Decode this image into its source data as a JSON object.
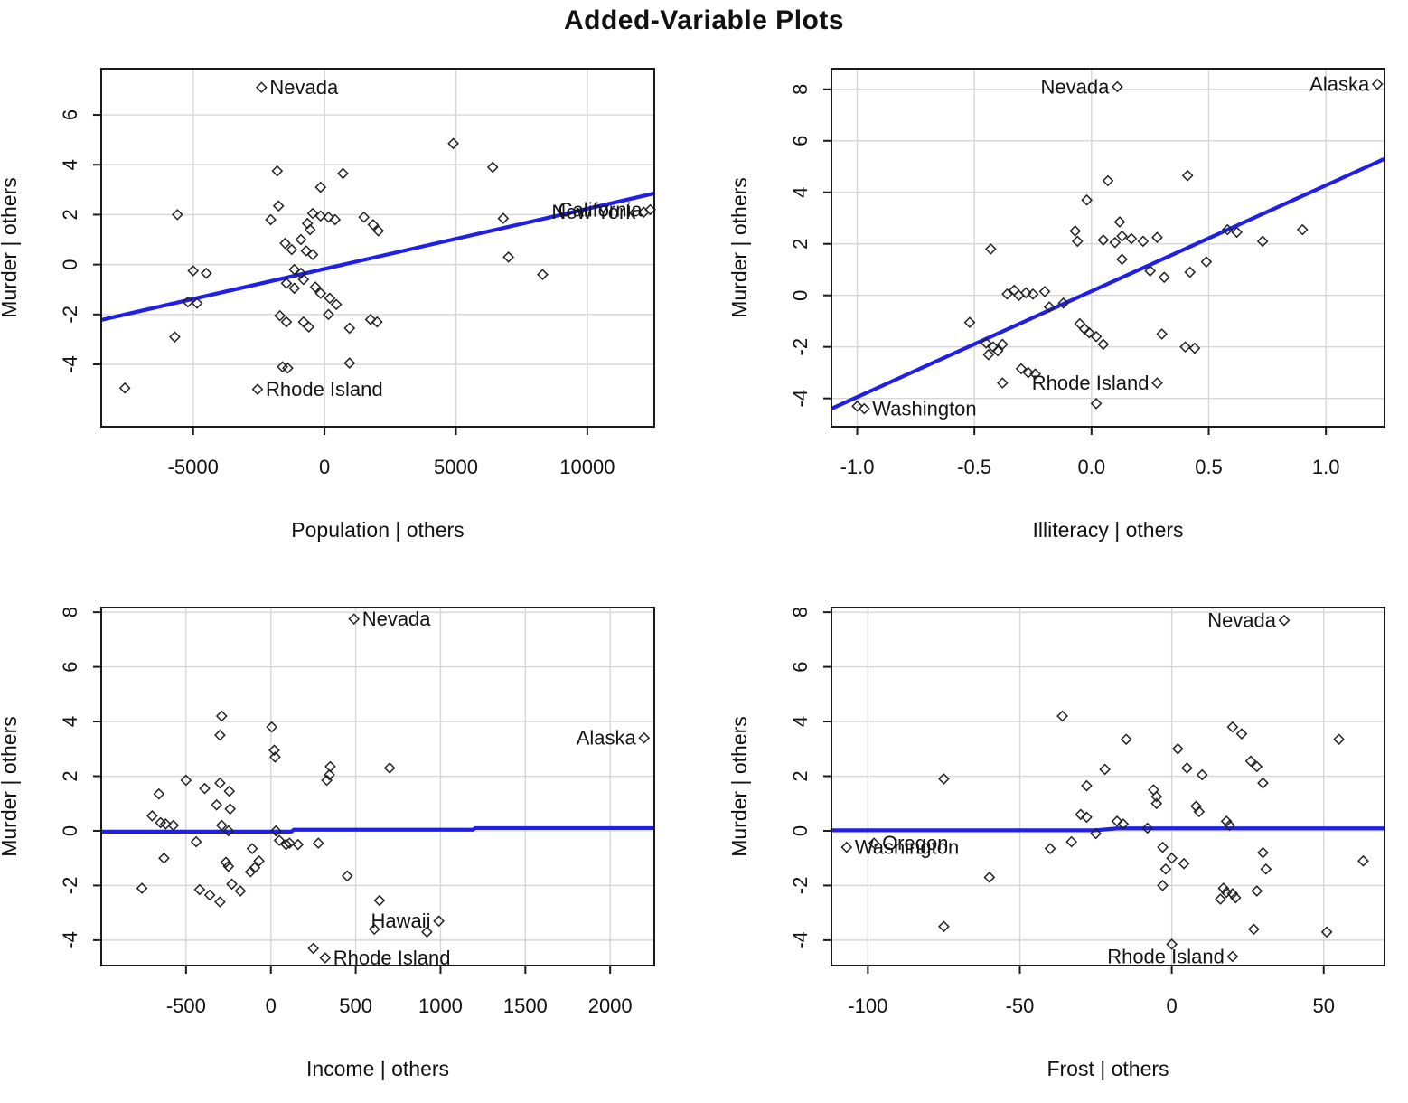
{
  "title": "Added-Variable Plots",
  "colors": {
    "regression_line": "#1f1fe8",
    "grid": "#d6d6d6",
    "box": "#1a1a1a",
    "point_stroke": "#222222",
    "tick_text": "#111111",
    "label_text": "#141414"
  },
  "chart_data": [
    {
      "type": "scatter",
      "xlabel": "Population | others",
      "ylabel": "Murder  |  others",
      "xlim": [
        -8500,
        12550
      ],
      "ylim": [
        -6.5,
        7.85
      ],
      "xticks": [
        -5000,
        0,
        5000,
        10000
      ],
      "xtick_labels": [
        "-5000",
        "0",
        "5000",
        "10000"
      ],
      "yticks": [
        -4,
        -2,
        0,
        2,
        4,
        6
      ],
      "ytick_labels": [
        "-4",
        "-2",
        "0",
        "2",
        "4",
        "6"
      ],
      "regression_line": [
        [
          -8500,
          -2.22
        ],
        [
          12550,
          2.85
        ]
      ],
      "points": [
        [
          -7600,
          -4.95
        ],
        [
          -2400,
          7.1
        ],
        [
          4900,
          4.85
        ],
        [
          6400,
          3.9
        ],
        [
          -1800,
          3.75
        ],
        [
          700,
          3.65
        ],
        [
          -150,
          3.1
        ],
        [
          -1750,
          2.35
        ],
        [
          -5600,
          2.0
        ],
        [
          -2050,
          1.8
        ],
        [
          -450,
          2.05
        ],
        [
          -150,
          1.95
        ],
        [
          150,
          1.9
        ],
        [
          400,
          1.8
        ],
        [
          1500,
          1.9
        ],
        [
          1850,
          1.6
        ],
        [
          2050,
          1.35
        ],
        [
          -650,
          1.65
        ],
        [
          -550,
          1.4
        ],
        [
          -900,
          1.0
        ],
        [
          -1500,
          0.85
        ],
        [
          -700,
          0.55
        ],
        [
          -1250,
          0.6
        ],
        [
          -450,
          0.4
        ],
        [
          6800,
          1.85
        ],
        [
          12150,
          2.1
        ],
        [
          12400,
          2.2
        ],
        [
          7000,
          0.3
        ],
        [
          8300,
          -0.4
        ],
        [
          -5000,
          -0.25
        ],
        [
          -4500,
          -0.35
        ],
        [
          -1150,
          -0.2
        ],
        [
          -900,
          -0.35
        ],
        [
          -800,
          -0.6
        ],
        [
          -1450,
          -0.75
        ],
        [
          -1150,
          -0.95
        ],
        [
          -350,
          -0.9
        ],
        [
          -150,
          -1.15
        ],
        [
          200,
          -1.35
        ],
        [
          450,
          -1.6
        ],
        [
          -5200,
          -1.5
        ],
        [
          -4850,
          -1.55
        ],
        [
          -1700,
          -2.05
        ],
        [
          -1450,
          -2.3
        ],
        [
          -800,
          -2.3
        ],
        [
          -600,
          -2.5
        ],
        [
          150,
          -2.0
        ],
        [
          1750,
          -2.2
        ],
        [
          2000,
          -2.3
        ],
        [
          950,
          -2.55
        ],
        [
          -5700,
          -2.9
        ],
        [
          -1600,
          -4.1
        ],
        [
          -1400,
          -4.15
        ],
        [
          950,
          -3.95
        ],
        [
          -2550,
          -5.0
        ]
      ],
      "point_labels": [
        {
          "text": "Nevada",
          "x": -2400,
          "y": 7.1,
          "side": "right"
        },
        {
          "text": "Rhode Island",
          "x": -2550,
          "y": -5.0,
          "side": "right"
        },
        {
          "text": "New York",
          "x": 12150,
          "y": 2.1,
          "side": "left"
        },
        {
          "text": "California",
          "x": 12400,
          "y": 2.2,
          "side": "left"
        }
      ]
    },
    {
      "type": "scatter",
      "xlabel": "Illiteracy | others",
      "ylabel": "Murder  |  others",
      "xlim": [
        -1.11,
        1.25
      ],
      "ylim": [
        -5.1,
        8.8
      ],
      "xticks": [
        -1.0,
        -0.5,
        0.0,
        0.5,
        1.0
      ],
      "xtick_labels": [
        "-1.0",
        "-0.5",
        "0.0",
        "0.5",
        "1.0"
      ],
      "yticks": [
        -4,
        -2,
        0,
        2,
        4,
        6,
        8
      ],
      "ytick_labels": [
        "-4",
        "-2",
        "0",
        "2",
        "4",
        "6",
        "8"
      ],
      "regression_line": [
        [
          -1.11,
          -4.4
        ],
        [
          1.25,
          5.3
        ]
      ],
      "points": [
        [
          0.11,
          8.1
        ],
        [
          1.22,
          8.2
        ],
        [
          0.41,
          4.65
        ],
        [
          0.07,
          4.45
        ],
        [
          -0.02,
          3.7
        ],
        [
          0.12,
          2.85
        ],
        [
          -0.07,
          2.5
        ],
        [
          -0.06,
          2.1
        ],
        [
          0.13,
          2.3
        ],
        [
          0.17,
          2.2
        ],
        [
          0.1,
          2.05
        ],
        [
          0.05,
          2.15
        ],
        [
          0.22,
          2.1
        ],
        [
          0.28,
          2.25
        ],
        [
          0.58,
          2.55
        ],
        [
          0.62,
          2.45
        ],
        [
          0.73,
          2.1
        ],
        [
          0.9,
          2.55
        ],
        [
          -0.43,
          1.8
        ],
        [
          0.13,
          1.4
        ],
        [
          0.25,
          0.95
        ],
        [
          0.31,
          0.7
        ],
        [
          0.42,
          0.9
        ],
        [
          0.49,
          1.3
        ],
        [
          -0.52,
          -1.05
        ],
        [
          -0.45,
          -1.85
        ],
        [
          -0.42,
          -2.0
        ],
        [
          -0.38,
          -1.9
        ],
        [
          -0.4,
          -2.15
        ],
        [
          -0.44,
          -2.3
        ],
        [
          -0.33,
          0.2
        ],
        [
          -0.28,
          0.1
        ],
        [
          -0.25,
          0.05
        ],
        [
          -0.2,
          0.15
        ],
        [
          -0.31,
          0.0
        ],
        [
          -0.36,
          0.05
        ],
        [
          -0.18,
          -0.45
        ],
        [
          -0.12,
          -0.3
        ],
        [
          -0.05,
          -1.1
        ],
        [
          -0.03,
          -1.3
        ],
        [
          -0.01,
          -1.45
        ],
        [
          0.02,
          -1.6
        ],
        [
          0.05,
          -1.9
        ],
        [
          0.3,
          -1.5
        ],
        [
          0.4,
          -2.0
        ],
        [
          0.44,
          -2.05
        ],
        [
          -0.3,
          -2.85
        ],
        [
          -0.27,
          -3.0
        ],
        [
          -0.24,
          -3.05
        ],
        [
          -0.38,
          -3.4
        ],
        [
          0.28,
          -3.4
        ],
        [
          0.02,
          -4.2
        ],
        [
          -0.97,
          -4.4
        ],
        [
          -1.0,
          -4.3
        ]
      ],
      "point_labels": [
        {
          "text": "Nevada",
          "x": 0.11,
          "y": 8.1,
          "side": "left"
        },
        {
          "text": "Alaska",
          "x": 1.22,
          "y": 8.2,
          "side": "left"
        },
        {
          "text": "Rhode Island",
          "x": 0.28,
          "y": -3.4,
          "side": "left"
        },
        {
          "text": "Washington",
          "x": -0.97,
          "y": -4.4,
          "side": "right"
        }
      ]
    },
    {
      "type": "scatter",
      "xlabel": "Income | others",
      "ylabel": "Murder  |  others",
      "xlim": [
        -1000,
        2260
      ],
      "ylim": [
        -4.93,
        8.17
      ],
      "xticks": [
        -500,
        0,
        500,
        1000,
        1500,
        2000
      ],
      "xtick_labels": [
        "-500",
        "0",
        "500",
        "1000",
        "1500",
        "2000"
      ],
      "yticks": [
        -4,
        -2,
        0,
        2,
        4,
        6,
        8
      ],
      "ytick_labels": [
        "-4",
        "-2",
        "0",
        "2",
        "4",
        "6",
        "8"
      ],
      "regression_line": [
        [
          -1000,
          -0.03
        ],
        [
          120,
          -0.03
        ],
        [
          135,
          0.04
        ],
        [
          1190,
          0.04
        ],
        [
          1205,
          0.1
        ],
        [
          2260,
          0.1
        ]
      ],
      "points": [
        [
          490,
          7.75
        ],
        [
          2200,
          3.4
        ],
        [
          -290,
          4.2
        ],
        [
          -300,
          3.5
        ],
        [
          5,
          3.8
        ],
        [
          20,
          2.95
        ],
        [
          25,
          2.7
        ],
        [
          350,
          2.35
        ],
        [
          345,
          2.05
        ],
        [
          330,
          1.85
        ],
        [
          700,
          2.3
        ],
        [
          -500,
          1.85
        ],
        [
          -300,
          1.75
        ],
        [
          -390,
          1.55
        ],
        [
          -660,
          1.35
        ],
        [
          -245,
          1.45
        ],
        [
          -320,
          0.95
        ],
        [
          -240,
          0.8
        ],
        [
          -700,
          0.55
        ],
        [
          -650,
          0.3
        ],
        [
          -620,
          0.25
        ],
        [
          -575,
          0.2
        ],
        [
          -290,
          0.2
        ],
        [
          -250,
          0.0
        ],
        [
          30,
          0.0
        ],
        [
          50,
          -0.35
        ],
        [
          90,
          -0.5
        ],
        [
          110,
          -0.45
        ],
        [
          160,
          -0.5
        ],
        [
          280,
          -0.45
        ],
        [
          -110,
          -0.65
        ],
        [
          -440,
          -0.4
        ],
        [
          -630,
          -1.0
        ],
        [
          -265,
          -1.15
        ],
        [
          -250,
          -1.3
        ],
        [
          -120,
          -1.5
        ],
        [
          -95,
          -1.35
        ],
        [
          -70,
          -1.1
        ],
        [
          450,
          -1.65
        ],
        [
          -760,
          -2.1
        ],
        [
          -420,
          -2.15
        ],
        [
          -360,
          -2.35
        ],
        [
          -300,
          -2.6
        ],
        [
          -230,
          -1.95
        ],
        [
          -180,
          -2.2
        ],
        [
          640,
          -2.55
        ],
        [
          610,
          -3.6
        ],
        [
          920,
          -3.7
        ],
        [
          990,
          -3.3
        ],
        [
          320,
          -4.65
        ],
        [
          250,
          -4.3
        ]
      ],
      "point_labels": [
        {
          "text": "Nevada",
          "x": 490,
          "y": 7.75,
          "side": "right"
        },
        {
          "text": "Alaska",
          "x": 2200,
          "y": 3.4,
          "side": "left"
        },
        {
          "text": "Hawaii",
          "x": 990,
          "y": -3.3,
          "side": "left"
        },
        {
          "text": "Rhode Island",
          "x": 320,
          "y": -4.65,
          "side": "right"
        }
      ]
    },
    {
      "type": "scatter",
      "xlabel": "Frost | others",
      "ylabel": "Murder  |  others",
      "xlim": [
        -112,
        70
      ],
      "ylim": [
        -4.93,
        8.17
      ],
      "xticks": [
        -100,
        -50,
        0,
        50
      ],
      "xtick_labels": [
        "-100",
        "-50",
        "0",
        "50"
      ],
      "yticks": [
        -4,
        -2,
        0,
        2,
        4,
        6,
        8
      ],
      "ytick_labels": [
        "-4",
        "-2",
        "0",
        "2",
        "4",
        "6",
        "8"
      ],
      "regression_line": [
        [
          -112,
          0.02
        ],
        [
          -25,
          0.02
        ],
        [
          -18,
          0.09
        ],
        [
          70,
          0.09
        ]
      ],
      "points": [
        [
          37,
          7.7
        ],
        [
          -36,
          4.2
        ],
        [
          -15,
          3.35
        ],
        [
          2,
          3.0
        ],
        [
          20,
          3.8
        ],
        [
          23,
          3.55
        ],
        [
          26,
          2.55
        ],
        [
          28,
          2.35
        ],
        [
          55,
          3.35
        ],
        [
          -75,
          1.9
        ],
        [
          -22,
          2.25
        ],
        [
          -28,
          1.65
        ],
        [
          5,
          2.3
        ],
        [
          10,
          2.05
        ],
        [
          30,
          1.75
        ],
        [
          -6,
          1.5
        ],
        [
          -5,
          1.25
        ],
        [
          -5,
          1.0
        ],
        [
          -30,
          0.6
        ],
        [
          -28,
          0.5
        ],
        [
          -18,
          0.35
        ],
        [
          -16,
          0.25
        ],
        [
          -25,
          -0.1
        ],
        [
          -33,
          -0.4
        ],
        [
          -8,
          0.1
        ],
        [
          8,
          0.9
        ],
        [
          9,
          0.7
        ],
        [
          18,
          0.35
        ],
        [
          19,
          0.2
        ],
        [
          -3,
          -0.6
        ],
        [
          0,
          -1.0
        ],
        [
          -2,
          -1.4
        ],
        [
          -3,
          -2.0
        ],
        [
          4,
          -1.2
        ],
        [
          17,
          -2.1
        ],
        [
          18,
          -2.25
        ],
        [
          20,
          -2.3
        ],
        [
          21,
          -2.45
        ],
        [
          16,
          -2.5
        ],
        [
          30,
          -0.8
        ],
        [
          31,
          -1.4
        ],
        [
          28,
          -2.2
        ],
        [
          27,
          -3.6
        ],
        [
          51,
          -3.7
        ],
        [
          63,
          -1.1
        ],
        [
          -60,
          -1.7
        ],
        [
          -75,
          -3.5
        ],
        [
          -40,
          -0.65
        ],
        [
          -107,
          -0.6
        ],
        [
          -98,
          -0.45
        ],
        [
          0,
          -4.15
        ],
        [
          20,
          -4.6
        ]
      ],
      "point_labels": [
        {
          "text": "Nevada",
          "x": 37,
          "y": 7.7,
          "side": "left"
        },
        {
          "text": "Oregon",
          "x": -98,
          "y": -0.45,
          "side": "right"
        },
        {
          "text": "Washington",
          "x": -107,
          "y": -0.6,
          "side": "right"
        },
        {
          "text": "Rhode Island",
          "x": 20,
          "y": -4.6,
          "side": "left"
        }
      ]
    }
  ]
}
